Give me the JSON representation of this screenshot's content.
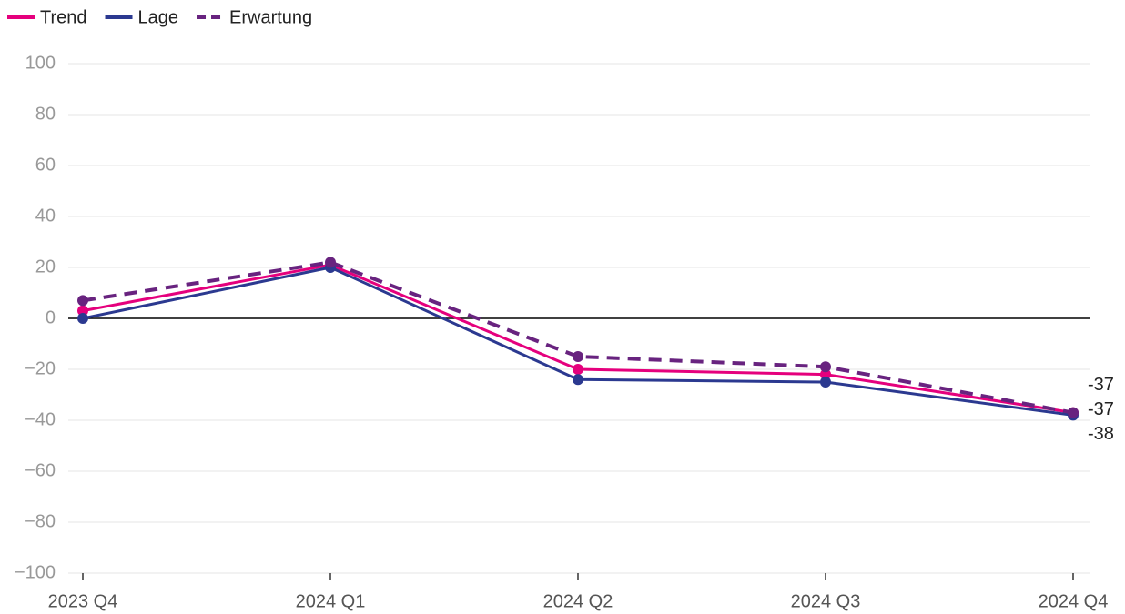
{
  "chart_data": {
    "type": "line",
    "categories": [
      "2023 Q4",
      "2024 Q1",
      "2024 Q2",
      "2024 Q3",
      "2024 Q4"
    ],
    "series": [
      {
        "name": "Trend",
        "color": "#e5007d",
        "values": [
          3,
          21,
          -20,
          -22,
          -37
        ]
      },
      {
        "name": "Lage",
        "color": "#2b3990",
        "values": [
          0,
          20,
          -24,
          -25,
          -38
        ]
      },
      {
        "name": "Erwartung",
        "color": "#68237f",
        "dashed": true,
        "values": [
          7,
          22,
          -15,
          -19,
          -37
        ]
      }
    ],
    "ylim": [
      -100,
      100
    ],
    "yticks": [
      {
        "value": -100,
        "label": "−100"
      },
      {
        "value": -80,
        "label": "−80"
      },
      {
        "value": -60,
        "label": "−60"
      },
      {
        "value": -40,
        "label": "−40"
      },
      {
        "value": -20,
        "label": "−20"
      },
      0,
      20,
      40,
      60,
      80,
      100
    ],
    "grid": true,
    "legend": "top-left"
  }
}
